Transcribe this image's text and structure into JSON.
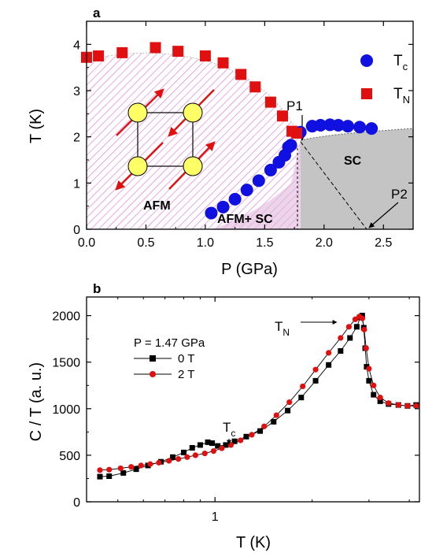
{
  "chart_data": [
    {
      "panel_label": "a",
      "type": "scatter",
      "xlabel": "P (GPa)",
      "ylabel": "T (K)",
      "xlim": [
        0,
        2.75
      ],
      "ylim": [
        0,
        4.5
      ],
      "xticks": [
        "0.0",
        "0.5",
        "1.0",
        "1.5",
        "2.0",
        "2.5"
      ],
      "yticks": [
        "0",
        "1",
        "2",
        "3",
        "4"
      ],
      "legend_placement": "top-right",
      "series": [
        {
          "name": "T",
          "name_sub": "c",
          "marker": "circle",
          "color": "#1010e0",
          "x": [
            1.05,
            1.15,
            1.25,
            1.35,
            1.45,
            1.55,
            1.62,
            1.67,
            1.7,
            1.72,
            1.8,
            1.9,
            1.97,
            2.05,
            2.12,
            2.2,
            2.3,
            2.4
          ],
          "y": [
            0.35,
            0.48,
            0.65,
            0.85,
            1.05,
            1.28,
            1.45,
            1.6,
            1.78,
            1.82,
            2.1,
            2.23,
            2.25,
            2.26,
            2.25,
            2.23,
            2.21,
            2.18
          ]
        },
        {
          "name": "T",
          "name_sub": "N",
          "marker": "square",
          "color": "#e01010",
          "x": [
            0.0,
            0.1,
            0.3,
            0.58,
            0.77,
            1.0,
            1.15,
            1.3,
            1.42,
            1.55,
            1.65,
            1.73,
            1.77
          ],
          "y": [
            3.72,
            3.75,
            3.82,
            3.93,
            3.85,
            3.75,
            3.6,
            3.35,
            3.08,
            2.75,
            2.45,
            2.12,
            2.08
          ]
        }
      ],
      "annotations": [
        "P1",
        "P2",
        "AFM",
        "AFM+ SC",
        "SC"
      ]
    },
    {
      "panel_label": "b",
      "type": "line",
      "xlabel": "T (K)",
      "ylabel": "C / T (a. u.)",
      "xscale": "log",
      "xlim": [
        0.4,
        4.3
      ],
      "ylim": [
        0,
        2200
      ],
      "xticks": [
        "1"
      ],
      "yticks": [
        "0",
        "500",
        "1000",
        "1500",
        "2000"
      ],
      "legend_title": "P = 1.47 GPa",
      "legend_placement": "upper-left",
      "series": [
        {
          "name": "0 T",
          "marker": "square",
          "color": "#000000",
          "x": [
            0.44,
            0.47,
            0.52,
            0.57,
            0.62,
            0.68,
            0.74,
            0.8,
            0.85,
            0.9,
            0.95,
            0.98,
            1.02,
            1.08,
            1.15,
            1.25,
            1.38,
            1.52,
            1.68,
            1.85,
            2.05,
            2.25,
            2.45,
            2.62,
            2.75,
            2.82,
            2.86,
            2.89,
            2.92,
            2.95,
            3.0,
            3.1,
            3.25,
            3.45,
            3.7,
            3.95,
            4.2
          ],
          "y": [
            270,
            275,
            310,
            350,
            390,
            430,
            480,
            530,
            580,
            610,
            640,
            630,
            600,
            610,
            650,
            700,
            760,
            860,
            980,
            1120,
            1300,
            1470,
            1620,
            1760,
            1880,
            1980,
            2000,
            1870,
            1650,
            1450,
            1300,
            1150,
            1080,
            1050,
            1040,
            1030,
            1040
          ]
        },
        {
          "name": "2 T",
          "marker": "circle",
          "color": "#e01010",
          "x": [
            0.44,
            0.47,
            0.51,
            0.55,
            0.59,
            0.63,
            0.67,
            0.72,
            0.77,
            0.82,
            0.87,
            0.93,
            0.99,
            1.05,
            1.12,
            1.2,
            1.3,
            1.42,
            1.55,
            1.7,
            1.87,
            2.05,
            2.25,
            2.45,
            2.6,
            2.72,
            2.8,
            2.86,
            2.9,
            2.94,
            3.0,
            3.1,
            3.25,
            3.45,
            3.7,
            3.95,
            4.2
          ],
          "y": [
            340,
            345,
            360,
            375,
            390,
            405,
            420,
            440,
            460,
            480,
            500,
            520,
            545,
            575,
            610,
            660,
            720,
            810,
            930,
            1070,
            1240,
            1420,
            1600,
            1760,
            1880,
            1960,
            1990,
            1970,
            1850,
            1650,
            1430,
            1250,
            1120,
            1060,
            1040,
            1030,
            1030
          ]
        }
      ],
      "annotations": [
        "T",
        "c",
        "T",
        "N"
      ]
    }
  ],
  "panel_a": {
    "label": "a",
    "xlabel": "P (GPa)",
    "ylabel": "T (K)",
    "xticks": [
      "0.0",
      "0.5",
      "1.0",
      "1.5",
      "2.0",
      "2.5"
    ],
    "yticks": [
      "0",
      "1",
      "2",
      "3",
      "4"
    ],
    "legend": [
      {
        "main": "T",
        "sub": "c"
      },
      {
        "main": "T",
        "sub": "N"
      }
    ],
    "labels": {
      "p1": "P1",
      "p2": "P2",
      "afm": "AFM",
      "afm_sc": "AFM+ SC",
      "sc": "SC"
    }
  },
  "panel_b": {
    "label": "b",
    "xlabel": "T (K)",
    "ylabel": "C / T (a. u.)",
    "xticks": [
      "1"
    ],
    "yticks": [
      "0",
      "500",
      "1000",
      "1500",
      "2000"
    ],
    "legend_title": "P = 1.47 GPa",
    "legend": [
      "0 T",
      "2 T"
    ],
    "tc_main": "T",
    "tc_sub": "c",
    "tn_main": "T",
    "tn_sub": "N"
  },
  "colors": {
    "tc_marker": "#1010e0",
    "tn_marker": "#e01010",
    "afm_hatch": "#e070d0",
    "sc_fill": "#c4c4c4",
    "spin_circle": "#ffff66",
    "spin_arrow": "#e01010"
  }
}
